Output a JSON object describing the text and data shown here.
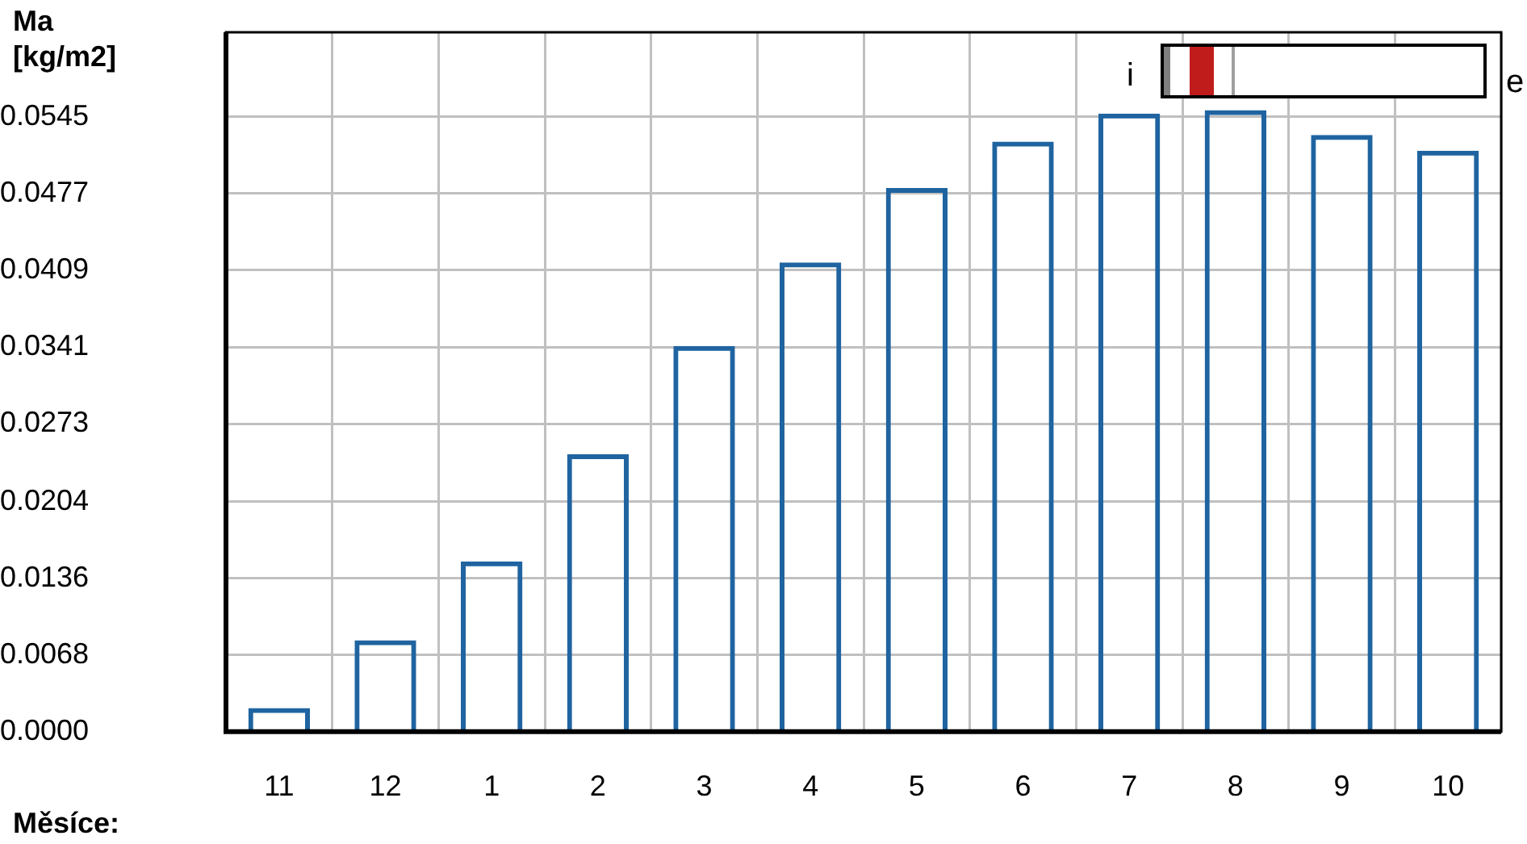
{
  "chart_data": {
    "type": "bar",
    "ylabel": "Ma\n[kg/m2]",
    "xlabel": "Měsíce:",
    "categories": [
      "11",
      "12",
      "1",
      "2",
      "3",
      "4",
      "5",
      "6",
      "7",
      "8",
      "9",
      "10"
    ],
    "values": [
      0.0021,
      0.0081,
      0.0151,
      0.0246,
      0.0342,
      0.0416,
      0.0482,
      0.0523,
      0.0548,
      0.0551,
      0.0529,
      0.0515
    ],
    "color": "#1f64a0",
    "ylim": [
      0,
      0.062
    ],
    "yticks": [
      {
        "value": 0,
        "label": "0.0000"
      },
      {
        "value": 0.0068,
        "label": "0.0068"
      },
      0.0136,
      0.0204,
      0.0273,
      0.0341,
      0.0409,
      0.0477,
      0.0545
    ],
    "grid": true,
    "legend": false,
    "annotations": [
      "i",
      "e"
    ]
  }
}
